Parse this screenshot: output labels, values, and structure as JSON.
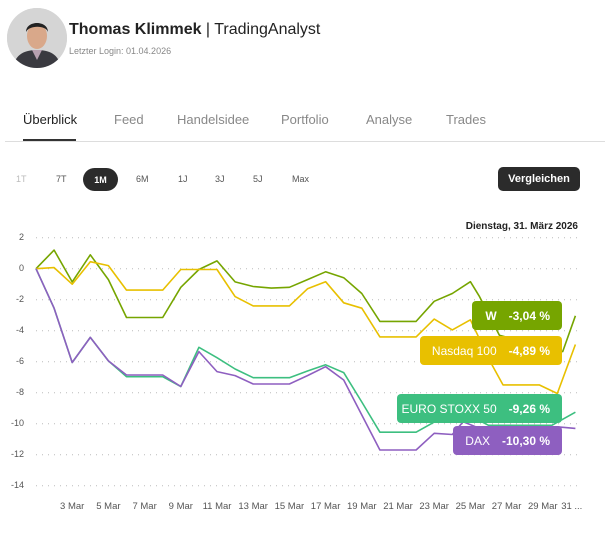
{
  "profile": {
    "name": "Thomas Klimmek",
    "separator": " | ",
    "role": "TradingAnalyst",
    "last_login": "Letzter Login: 01.04.2026"
  },
  "tabs": [
    {
      "label": "Überblick",
      "active": true
    },
    {
      "label": "Feed"
    },
    {
      "label": "Handelsidee"
    },
    {
      "label": "Portfolio"
    },
    {
      "label": "Analyse"
    },
    {
      "label": "Trades"
    }
  ],
  "ranges": [
    {
      "label": "1T"
    },
    {
      "label": "7T"
    },
    {
      "label": "1M",
      "active": true
    },
    {
      "label": "6M"
    },
    {
      "label": "1J"
    },
    {
      "label": "3J"
    },
    {
      "label": "5J"
    },
    {
      "label": "Max"
    }
  ],
  "compare_label": "Vergleichen",
  "chart_data": {
    "type": "line",
    "title": "Dienstag, 31. März 2026",
    "xlabel": "",
    "ylabel": "%",
    "ylim": [
      -14,
      2
    ],
    "yticks": [
      2,
      0,
      -2,
      -4,
      -6,
      -8,
      -10,
      -12,
      -14
    ],
    "xticks": [
      {
        "day": 3,
        "label": "3 Mar"
      },
      {
        "day": 5,
        "label": "5 Mar"
      },
      {
        "day": 7,
        "label": "7 Mar"
      },
      {
        "day": 9,
        "label": "9 Mar"
      },
      {
        "day": 11,
        "label": "11 Mar"
      },
      {
        "day": 13,
        "label": "13 Mar"
      },
      {
        "day": 15,
        "label": "15 Mar"
      },
      {
        "day": 17,
        "label": "17 Mar"
      },
      {
        "day": 19,
        "label": "19 Mar"
      },
      {
        "day": 21,
        "label": "21 Mar"
      },
      {
        "day": 23,
        "label": "23 Mar"
      },
      {
        "day": 25,
        "label": "25 Mar"
      },
      {
        "day": 27,
        "label": "27 Mar"
      },
      {
        "day": 29,
        "label": "29 Mar"
      },
      {
        "day": 30.6,
        "label": "31 ..."
      }
    ],
    "grid": true,
    "series": [
      {
        "name": "W",
        "end_label": "-3,04 %",
        "color": "#76a500",
        "points": [
          [
            1,
            0
          ],
          [
            2,
            1.2
          ],
          [
            3,
            -0.85
          ],
          [
            4,
            0.9
          ],
          [
            5,
            -0.7
          ],
          [
            6,
            -3.15
          ],
          [
            8,
            -3.15
          ],
          [
            9,
            -1.2
          ],
          [
            10,
            -0.05
          ],
          [
            11,
            0.5
          ],
          [
            12,
            -0.85
          ],
          [
            13,
            -1.15
          ],
          [
            14,
            -1.25
          ],
          [
            15,
            -1.2
          ],
          [
            16,
            -0.7
          ],
          [
            17,
            -0.2
          ],
          [
            18,
            -0.58
          ],
          [
            19,
            -1.6
          ],
          [
            20,
            -3.4
          ],
          [
            22,
            -3.4
          ],
          [
            23,
            -2.1
          ],
          [
            24,
            -1.6
          ],
          [
            25,
            -0.84
          ],
          [
            25.5,
            -1.8
          ],
          [
            26.6,
            -4.3
          ],
          [
            30.1,
            -5.35
          ],
          [
            30.8,
            -3.04
          ]
        ]
      },
      {
        "name": "Nasdaq 100",
        "end_label": "-4,89 %",
        "color": "#e8c000",
        "points": [
          [
            1,
            0
          ],
          [
            2,
            0.07
          ],
          [
            3,
            -1.0
          ],
          [
            4,
            0.45
          ],
          [
            5,
            0.2
          ],
          [
            6,
            -1.38
          ],
          [
            8,
            -1.38
          ],
          [
            9,
            -0.05
          ],
          [
            11,
            -0.05
          ],
          [
            12,
            -1.8
          ],
          [
            13,
            -2.4
          ],
          [
            15,
            -2.4
          ],
          [
            16,
            -1.3
          ],
          [
            17,
            -0.84
          ],
          [
            18,
            -2.2
          ],
          [
            19,
            -2.55
          ],
          [
            20,
            -4.4
          ],
          [
            22,
            -4.4
          ],
          [
            23,
            -3.25
          ],
          [
            24,
            -3.95
          ],
          [
            25,
            -3.3
          ],
          [
            26.1,
            -6.0
          ],
          [
            26.8,
            -7.5
          ],
          [
            28.8,
            -7.5
          ],
          [
            29.8,
            -8.05
          ],
          [
            30.8,
            -4.89
          ]
        ]
      },
      {
        "name": "EURO STOXX 50",
        "end_label": "-9,26 %",
        "color": "#3dbf80",
        "points": [
          [
            1,
            0
          ],
          [
            2,
            -2.55
          ],
          [
            3,
            -6.05
          ],
          [
            4,
            -4.43
          ],
          [
            5,
            -5.95
          ],
          [
            6,
            -6.97
          ],
          [
            8,
            -6.97
          ],
          [
            9,
            -7.6
          ],
          [
            10,
            -5.07
          ],
          [
            11,
            -5.74
          ],
          [
            12,
            -6.47
          ],
          [
            13,
            -7.03
          ],
          [
            15,
            -7.03
          ],
          [
            16,
            -6.6
          ],
          [
            17,
            -6.2
          ],
          [
            18,
            -6.7
          ],
          [
            19,
            -8.6
          ],
          [
            20,
            -10.55
          ],
          [
            22,
            -10.55
          ],
          [
            23,
            -9.9
          ],
          [
            24,
            -9.9
          ],
          [
            25,
            -9.5
          ],
          [
            26,
            -10.1
          ],
          [
            29.5,
            -10.1
          ],
          [
            30.8,
            -9.26
          ]
        ]
      },
      {
        "name": "DAX",
        "end_label": "-10,30 %",
        "color": "#8e5fc0",
        "points": [
          [
            1,
            0
          ],
          [
            2,
            -2.55
          ],
          [
            3,
            -6.05
          ],
          [
            4,
            -4.43
          ],
          [
            5,
            -5.95
          ],
          [
            6,
            -6.86
          ],
          [
            8,
            -6.86
          ],
          [
            9,
            -7.6
          ],
          [
            10,
            -5.35
          ],
          [
            11,
            -6.64
          ],
          [
            12,
            -6.9
          ],
          [
            13,
            -7.44
          ],
          [
            15,
            -7.44
          ],
          [
            16,
            -6.9
          ],
          [
            17,
            -6.32
          ],
          [
            18,
            -7.18
          ],
          [
            19,
            -9.44
          ],
          [
            20,
            -11.7
          ],
          [
            22,
            -11.7
          ],
          [
            23,
            -10.62
          ],
          [
            24,
            -10.7
          ],
          [
            24.6,
            -9.87
          ],
          [
            25.5,
            -10.3
          ],
          [
            26.8,
            -11.95
          ],
          [
            28.8,
            -11.95
          ],
          [
            29.8,
            -10.2
          ],
          [
            30.8,
            -10.3
          ]
        ]
      }
    ]
  }
}
